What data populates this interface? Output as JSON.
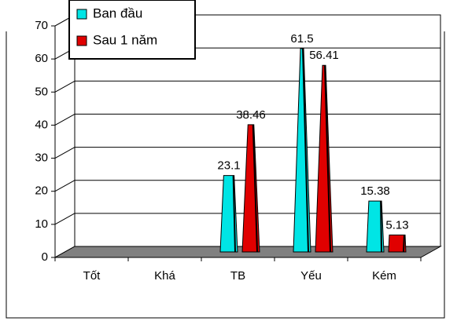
{
  "chart_data": {
    "type": "bar3d",
    "categories": [
      "Tốt",
      "Khá",
      "TB",
      "Yếu",
      "Kém"
    ],
    "series": [
      {
        "name": "Ban đầu",
        "color": "#00e5e5",
        "values": [
          null,
          null,
          23.1,
          61.5,
          15.38
        ]
      },
      {
        "name": "Sau 1 năm",
        "color": "#e00000",
        "values": [
          null,
          null,
          38.46,
          56.41,
          5.13
        ]
      }
    ],
    "ylim": [
      0,
      70
    ],
    "yticks": [
      0,
      10,
      20,
      30,
      40,
      50,
      60,
      70
    ],
    "grid": true,
    "legend": "top-left"
  }
}
